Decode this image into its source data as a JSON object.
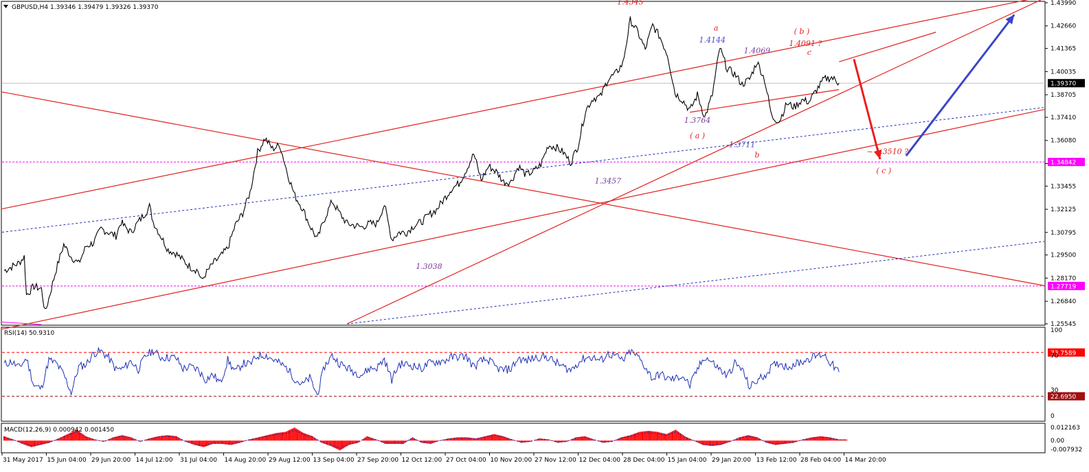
{
  "header": {
    "main": "GBPUSD,H4  1.39346 1.39479 1.39326 1.39370",
    "rsi": "RSI(14) 50.9310",
    "macd": "MACD(12,26,9) 0.000942 0.001450"
  },
  "chart_data": [
    {
      "type": "line",
      "title": "GBPUSD,H4",
      "ohlc_last": {
        "open": 1.39346,
        "high": 1.39479,
        "low": 1.39326,
        "close": 1.3937
      },
      "y_ticks": [
        "1.43990",
        "1.42660",
        "1.41365",
        "1.40035",
        "1.38705",
        "1.37410",
        "1.36080",
        "1.34750",
        "1.33455",
        "1.32125",
        "1.30795",
        "1.29500",
        "1.28170",
        "1.26840",
        "1.25545"
      ],
      "ylim": [
        1.25545,
        1.4399
      ],
      "x_ticks": [
        "31 May 2017",
        "15 Jun 04:00",
        "29 Jun 20:00",
        "14 Jul 12:00",
        "31 Jul 04:00",
        "14 Aug 20:00",
        "29 Aug 12:00",
        "13 Sep 04:00",
        "27 Sep 20:00",
        "12 Oct 12:00",
        "27 Oct 04:00",
        "10 Nov 20:00",
        "27 Nov 12:00",
        "12 Dec 04:00",
        "28 Dec 04:00",
        "15 Jan 04:00",
        "29 Jan 20:00",
        "13 Feb 12:00",
        "28 Feb 04:00",
        "14 Mar 20:00"
      ],
      "price_path": [
        [
          0,
          1.286
        ],
        [
          2,
          1.2905
        ],
        [
          2.7,
          1.294
        ],
        [
          3,
          1.272
        ],
        [
          4,
          1.277
        ],
        [
          5,
          1.2755
        ],
        [
          5.5,
          1.262
        ],
        [
          6,
          1.27
        ],
        [
          7,
          1.287
        ],
        [
          8,
          1.301
        ],
        [
          9,
          1.294
        ],
        [
          10,
          1.29
        ],
        [
          11,
          1.3
        ],
        [
          12,
          1.302
        ],
        [
          12.5,
          1.306
        ],
        [
          13,
          1.31
        ],
        [
          14,
          1.308
        ],
        [
          15,
          1.306
        ],
        [
          15.7,
          1.314
        ],
        [
          16,
          1.312
        ],
        [
          17,
          1.308
        ],
        [
          18,
          1.314
        ],
        [
          19,
          1.3195
        ],
        [
          19.5,
          1.323
        ],
        [
          20,
          1.314
        ],
        [
          21,
          1.306
        ],
        [
          22,
          1.298
        ],
        [
          23,
          1.296
        ],
        [
          24,
          1.292
        ],
        [
          25,
          1.288
        ],
        [
          26,
          1.286
        ],
        [
          26.5,
          1.28
        ],
        [
          27,
          1.284
        ],
        [
          28,
          1.29
        ],
        [
          29,
          1.294
        ],
        [
          30,
          1.299
        ],
        [
          31,
          1.312
        ],
        [
          32,
          1.319
        ],
        [
          33,
          1.331
        ],
        [
          34,
          1.354
        ],
        [
          35,
          1.362
        ],
        [
          36,
          1.356
        ],
        [
          37,
          1.358
        ],
        [
          38,
          1.342
        ],
        [
          39,
          1.329
        ],
        [
          40,
          1.322
        ],
        [
          41,
          1.312
        ],
        [
          42,
          1.304
        ],
        [
          43,
          1.316
        ],
        [
          44,
          1.326
        ],
        [
          45,
          1.319
        ],
        [
          46,
          1.313
        ],
        [
          47,
          1.312
        ],
        [
          48,
          1.311
        ],
        [
          49,
          1.313
        ],
        [
          50,
          1.313
        ],
        [
          51,
          1.324
        ],
        [
          52,
          1.304
        ],
        [
          53,
          1.308
        ],
        [
          54,
          1.308
        ],
        [
          55,
          1.312
        ],
        [
          56,
          1.314
        ],
        [
          57,
          1.318
        ],
        [
          58,
          1.321
        ],
        [
          59,
          1.327
        ],
        [
          60,
          1.333
        ],
        [
          61,
          1.336
        ],
        [
          62,
          1.344
        ],
        [
          63,
          1.353
        ],
        [
          64,
          1.338
        ],
        [
          65,
          1.346
        ],
        [
          66,
          1.343
        ],
        [
          67,
          1.337
        ],
        [
          68,
          1.337
        ],
        [
          69,
          1.346
        ],
        [
          70,
          1.341
        ],
        [
          71,
          1.343
        ],
        [
          72,
          1.347
        ],
        [
          73,
          1.358
        ],
        [
          74,
          1.357
        ],
        [
          75,
          1.354
        ],
        [
          76,
          1.348
        ],
        [
          77,
          1.358
        ],
        [
          78,
          1.378
        ],
        [
          79,
          1.385
        ],
        [
          80,
          1.386
        ],
        [
          81,
          1.396
        ],
        [
          82,
          1.399
        ],
        [
          83,
          1.405
        ],
        [
          84,
          1.43
        ],
        [
          85,
          1.423
        ],
        [
          86,
          1.413
        ],
        [
          87,
          1.427
        ],
        [
          88,
          1.42
        ],
        [
          89,
          1.41
        ],
        [
          90,
          1.388
        ],
        [
          91,
          1.384
        ],
        [
          92,
          1.378
        ],
        [
          93,
          1.387
        ],
        [
          94,
          1.374
        ],
        [
          95,
          1.387
        ],
        [
          96,
          1.414
        ],
        [
          97,
          1.402
        ],
        [
          98,
          1.399
        ],
        [
          99,
          1.393
        ],
        [
          100,
          1.396
        ],
        [
          101,
          1.406
        ],
        [
          102,
          1.396
        ],
        [
          103,
          1.374
        ],
        [
          104,
          1.372
        ],
        [
          105,
          1.382
        ],
        [
          106,
          1.38
        ],
        [
          107,
          1.384
        ],
        [
          108,
          1.383
        ],
        [
          109,
          1.39
        ],
        [
          110,
          1.396
        ],
        [
          111,
          1.397
        ],
        [
          112,
          1.3937
        ]
      ],
      "trend_lines": {
        "red": [
          [
            [
              -2,
              1.32
            ],
            [
              140,
              1.444
            ]
          ],
          [
            [
              -2,
              1.2508
            ],
            [
              140,
              1.379
            ]
          ],
          [
            [
              -2,
              1.39
            ],
            [
              140,
              1.277
            ]
          ],
          [
            [
              46,
              1.2554
            ],
            [
              140,
              1.4434
            ]
          ],
          [
            [
              92,
              1.377
            ],
            [
              112,
              1.39
            ]
          ],
          [
            [
              112,
              1.406
            ],
            [
              125,
              1.423
            ]
          ]
        ],
        "blue_dotted": [
          [
            [
              -2,
              1.3072
            ],
            [
              140,
              1.38
            ]
          ],
          [
            [
              46,
              1.2554
            ],
            [
              140,
              1.303
            ]
          ]
        ],
        "magenta_dashed": [
          [
            [
              -2,
              1.257
            ],
            [
              5,
              1.255
            ]
          ]
        ]
      },
      "projected_moves": {
        "red_arrow": [
          [
            114,
            1.4075
          ],
          [
            117.5,
            1.35
          ]
        ],
        "blue_arrow": [
          [
            121,
            1.352
          ],
          [
            135.5,
            1.433
          ]
        ]
      },
      "horizontal_levels": [
        {
          "value": 1.34842,
          "label": "1.34842",
          "color": "#ff00ff"
        },
        {
          "value": 1.27719,
          "label": "1.27719",
          "color": "#ff00ff"
        },
        {
          "value": 1.3937,
          "label": "1.39370",
          "color": "#000000"
        }
      ],
      "annotations": [
        {
          "text": "1.4345",
          "x": 84,
          "y": 1.439,
          "color": "#e0201d"
        },
        {
          "text": "a",
          "x": 95.5,
          "y": 1.424,
          "color": "#e0201d"
        },
        {
          "text": "1.4144",
          "x": 95,
          "y": 1.417,
          "color": "#4a4acb"
        },
        {
          "text": "1.4069",
          "x": 101,
          "y": 1.411,
          "color": "#7a3aa0"
        },
        {
          "text": "( b )",
          "x": 107,
          "y": 1.422,
          "color": "#e0201d"
        },
        {
          "text": "1.4091  ?",
          "x": 107.5,
          "y": 1.415,
          "color": "#e0201d"
        },
        {
          "text": "c",
          "x": 108,
          "y": 1.41,
          "color": "#e0201d"
        },
        {
          "text": "1.3764",
          "x": 93,
          "y": 1.371,
          "color": "#7a3aa0"
        },
        {
          "text": "( a )",
          "x": 93,
          "y": 1.362,
          "color": "#e0201d"
        },
        {
          "text": "1.3711",
          "x": 99,
          "y": 1.357,
          "color": "#4a4acb"
        },
        {
          "text": "b",
          "x": 101,
          "y": 1.351,
          "color": "#e0201d"
        },
        {
          "text": "~ 1.3510  ?",
          "x": 118.5,
          "y": 1.353,
          "color": "#e0201d"
        },
        {
          "text": "( c )",
          "x": 118,
          "y": 1.342,
          "color": "#e0201d"
        },
        {
          "text": "1.3457",
          "x": 81,
          "y": 1.336,
          "color": "#7a3aa0"
        },
        {
          "text": "1.3038",
          "x": 57,
          "y": 1.287,
          "color": "#7a3aa0"
        }
      ]
    },
    {
      "type": "line",
      "title": "RSI(14) 50.9310",
      "ylim": [
        0,
        100
      ],
      "y_ticks": [
        "100",
        "70",
        "30",
        "0"
      ],
      "levels": [
        {
          "value": 73.7589,
          "label": "73.7589",
          "color": "#ff0000"
        },
        {
          "value": 22.695,
          "label": "22.6950",
          "color": "#a01010"
        }
      ],
      "series": [
        {
          "values": [
            60,
            63,
            56,
            67,
            35,
            32,
            65,
            61,
            48,
            27,
            57,
            60,
            73,
            75,
            68,
            54,
            55,
            64,
            54,
            70,
            76,
            68,
            68,
            68,
            55,
            57,
            54,
            42,
            48,
            38,
            65,
            51,
            61,
            60,
            70,
            71,
            66,
            61,
            55,
            43,
            36,
            44,
            24,
            58,
            70,
            61,
            56,
            51,
            48,
            55,
            56,
            66,
            42,
            60,
            60,
            58,
            55,
            61,
            63,
            64,
            68,
            69,
            69,
            57,
            64,
            65,
            56,
            53,
            55,
            67,
            64,
            67,
            69,
            68,
            62,
            57,
            53,
            62,
            68,
            68,
            64,
            72,
            70,
            64,
            75,
            69,
            57,
            43,
            49,
            43,
            43,
            47,
            35,
            54,
            69,
            62,
            54,
            46,
            61,
            54,
            33,
            41,
            47,
            57,
            62,
            57,
            60,
            63,
            67,
            70,
            72,
            60,
            51
          ],
          "color": "#1f2fb5"
        }
      ]
    },
    {
      "type": "bar",
      "title": "MACD(12,26,9) 0.000942 0.001450",
      "ylim": [
        -0.00995,
        0.01465
      ],
      "y_ticks": [
        "0.012163",
        "0.00",
        "-0.007932"
      ],
      "histogram": [
        0.004,
        0.001,
        -0.003,
        -0.006,
        -0.004,
        -0.002,
        0.002,
        0.006,
        0.01,
        0.004,
        0.001,
        -0.001,
        0.003,
        0.005,
        0.003,
        -0.001,
        0.002,
        0.004,
        0.005,
        0.004,
        -0.001,
        -0.004,
        -0.006,
        -0.003,
        -0.003,
        -0.004,
        -0.002,
        0.001,
        0.003,
        0.005,
        0.007,
        0.008,
        0.012,
        0.007,
        0.004,
        -0.002,
        -0.005,
        -0.009,
        -0.004,
        -0.002,
        0.004,
        0.001,
        -0.003,
        -0.003,
        -0.003,
        0.003,
        -0.002,
        -0.003,
        0.0,
        0.002,
        0.003,
        0.003,
        0.002,
        0.004,
        0.006,
        0.004,
        0.001,
        -0.002,
        -0.001,
        0.002,
        0.001,
        -0.002,
        -0.001,
        0.003,
        0.004,
        0.001,
        -0.002,
        -0.001,
        0.003,
        0.005,
        0.008,
        0.009,
        0.008,
        0.006,
        0.01,
        0.004,
        0.0,
        -0.004,
        -0.005,
        -0.004,
        -0.001,
        0.003,
        0.005,
        0.003,
        -0.002,
        -0.004,
        -0.003,
        -0.002,
        0.001,
        0.003,
        0.004,
        0.003,
        0.001
      ],
      "colors": {
        "positive": "#ff0000",
        "negative": "#ff0000",
        "signal": "#1f2fb5"
      }
    }
  ]
}
